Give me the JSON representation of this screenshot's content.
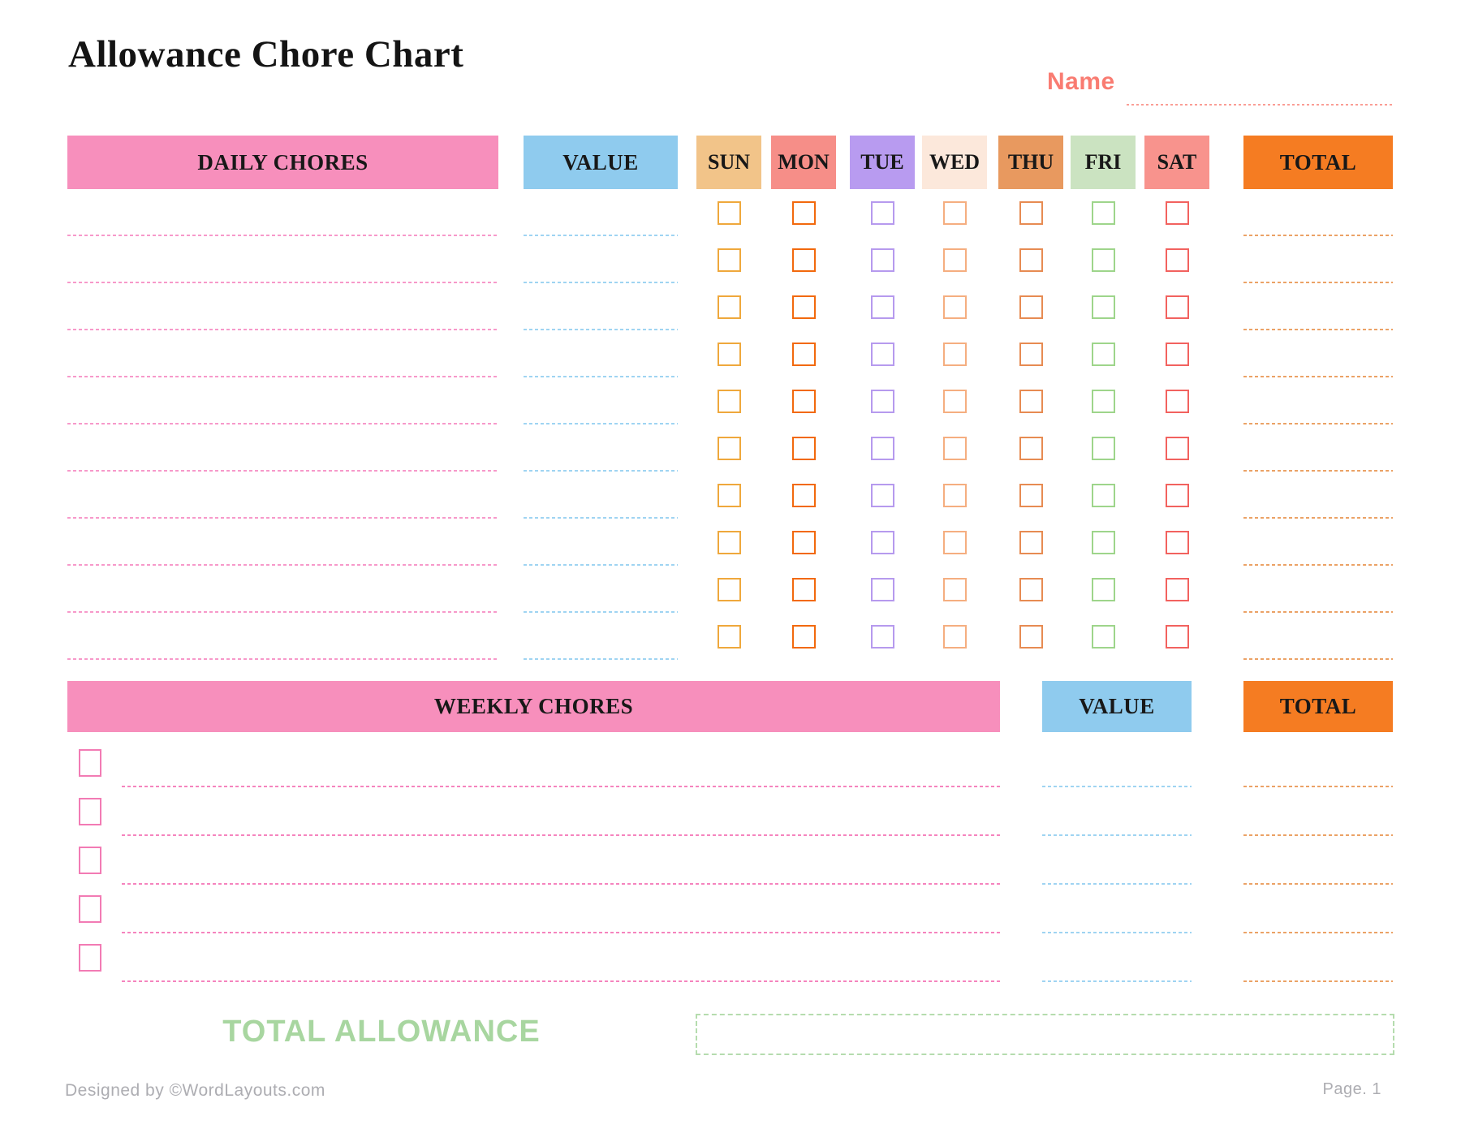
{
  "page": {
    "title": "Allowance Chore Chart",
    "name_label": "Name",
    "footer_left": "Designed by ©WordLayouts.com",
    "footer_right": "Page. 1"
  },
  "daily": {
    "header": {
      "chores": "DAILY CHORES",
      "value": "VALUE",
      "total": "TOTAL"
    },
    "days": [
      {
        "label": "SUN",
        "header_bg": "#F2C489",
        "checkbox_color": "#EFA83C"
      },
      {
        "label": "MON",
        "header_bg": "#F68E88",
        "checkbox_color": "#F2690D"
      },
      {
        "label": "TUE",
        "header_bg": "#B89BF0",
        "checkbox_color": "#B69AEE"
      },
      {
        "label": "WED",
        "header_bg": "#FCE8DB",
        "checkbox_color": "#F5AE80"
      },
      {
        "label": "THU",
        "header_bg": "#E8995F",
        "checkbox_color": "#E78B52"
      },
      {
        "label": "FRI",
        "header_bg": "#CBE3C1",
        "checkbox_color": "#9ED58B"
      },
      {
        "label": "SAT",
        "header_bg": "#F8938D",
        "checkbox_color": "#F2625F"
      }
    ],
    "row_count": 10
  },
  "weekly": {
    "header": {
      "chores": "WEEKLY CHORES",
      "value": "VALUE",
      "total": "TOTAL"
    },
    "row_count": 5
  },
  "total_allowance": {
    "label": "TOTAL ALLOWANCE"
  },
  "colors": {
    "banner_pink": "#F78FBC",
    "value_blue": "#8FCBEE",
    "total_orange": "#F57C22",
    "pink_line": "#F799CA",
    "blue_line": "#9FD4F2",
    "orange_line": "#EBA266",
    "weekly_pink_line": "#F584BE",
    "weekly_check": "#F27BB4",
    "name_color": "#F97C72",
    "green_text": "#A8D6A0",
    "green_border": "#B5DCAE",
    "footer_gray": "#ADADB2"
  }
}
